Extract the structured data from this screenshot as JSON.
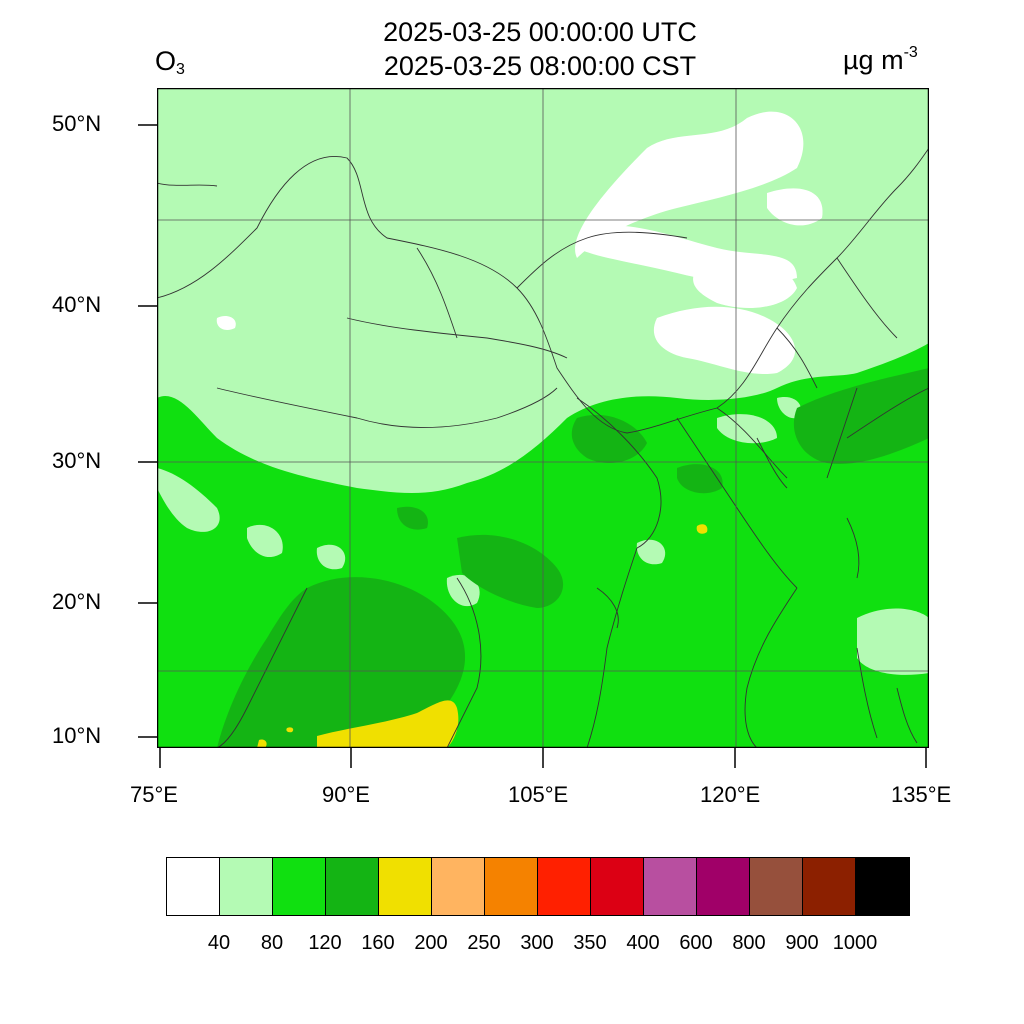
{
  "title": {
    "utc": "2025-03-25 00:00:00 UTC",
    "cst": "2025-03-25 08:00:00 CST"
  },
  "variable": {
    "base": "O",
    "subscript": "3"
  },
  "unit": {
    "base": "µg m",
    "superscript": "-3"
  },
  "axes": {
    "x_ticks": [
      "75°E",
      "90°E",
      "105°E",
      "120°E",
      "135°E"
    ],
    "y_ticks": [
      "50°N",
      "40°N",
      "30°N",
      "20°N",
      "10°N"
    ]
  },
  "legend": {
    "colors": [
      "#ffffff",
      "#b4fab4",
      "#10e010",
      "#14b414",
      "#f0e000",
      "#ffb460",
      "#f58200",
      "#ff2000",
      "#dc0014",
      "#b84fa0",
      "#a00068",
      "#96503c",
      "#8c2000",
      "#000000"
    ],
    "labels": [
      "40",
      "80",
      "120",
      "160",
      "200",
      "250",
      "300",
      "350",
      "400",
      "600",
      "800",
      "900",
      "1000"
    ]
  }
}
